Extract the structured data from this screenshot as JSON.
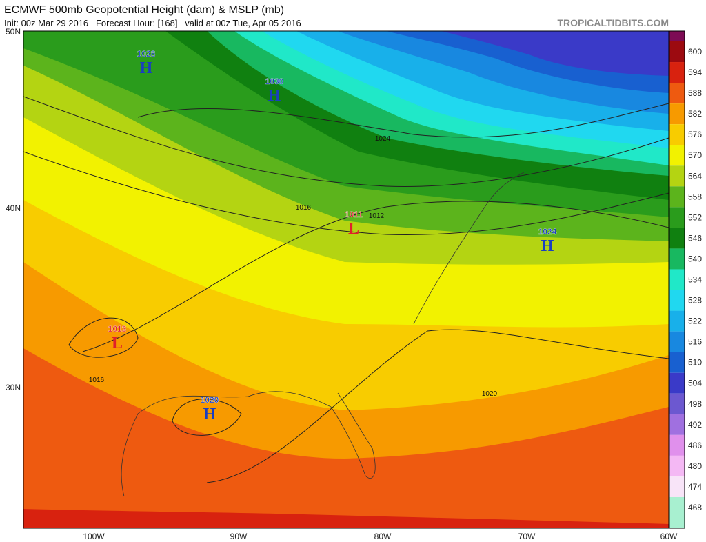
{
  "header": {
    "title": "ECMWF 500mb Geopotential Height (dam) & MSLP (mb)",
    "subtitle": "Init: 00z Mar 29 2016   Forecast Hour: [168]   valid at 00z Tue, Apr 05 2016",
    "credit": "TROPICALTIDBITS.COM"
  },
  "map": {
    "lat_labels": [
      "50N",
      "40N",
      "30N"
    ],
    "lon_labels": [
      "100W",
      "90W",
      "80W",
      "70W",
      "60W"
    ],
    "centers": [
      {
        "letter": "H",
        "value": 1028
      },
      {
        "letter": "H",
        "value": 1030
      },
      {
        "letter": "L",
        "value": 1011
      },
      {
        "letter": "H",
        "value": 1024
      },
      {
        "letter": "L",
        "value": 1013
      },
      {
        "letter": "H",
        "value": 1020
      }
    ],
    "contour_labels": [
      1024,
      1016,
      1012,
      1016,
      1020
    ]
  },
  "colorbar": {
    "levels": [
      600,
      594,
      588,
      582,
      576,
      570,
      564,
      558,
      552,
      546,
      540,
      534,
      528,
      522,
      516,
      510,
      504,
      498,
      492,
      486,
      480,
      474,
      468
    ],
    "colors": [
      "#7d0b55",
      "#9c0a10",
      "#d8220f",
      "#ee5a10",
      "#f79a00",
      "#f8cc00",
      "#f2f200",
      "#b4d412",
      "#5cb41c",
      "#2a9c1c",
      "#108010",
      "#18b860",
      "#20e8c8",
      "#20d8f0",
      "#18b0ea",
      "#1888e0",
      "#1860d0",
      "#3a3ac8",
      "#6c58d0",
      "#a070e0",
      "#e090ec",
      "#f4b8f4",
      "#f8e4f8",
      "#a8f0d0"
    ]
  }
}
